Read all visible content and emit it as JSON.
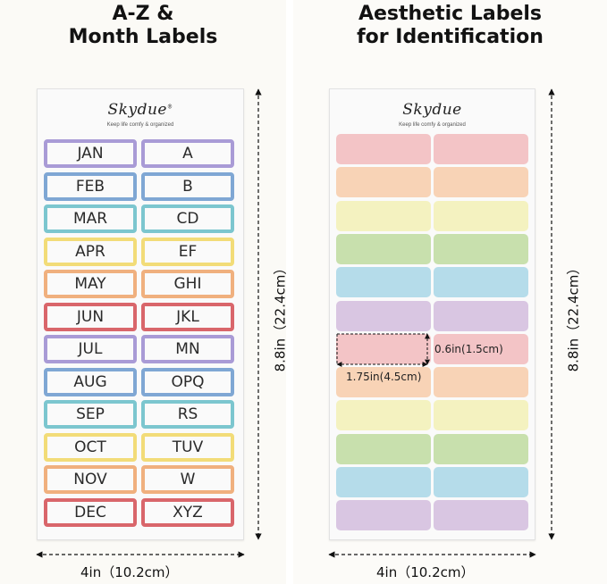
{
  "left_panel": {
    "title_line1": "A-Z &",
    "title_line2": "Month Labels",
    "brand": "Skydue",
    "brand_mark": "®",
    "tagline": "Keep life comfy & organized",
    "rows": [
      {
        "month": "JAN",
        "letters": "A",
        "color": "#a99bd6"
      },
      {
        "month": "FEB",
        "letters": "B",
        "color": "#7fa7d4"
      },
      {
        "month": "MAR",
        "letters": "CD",
        "color": "#7cc6cf"
      },
      {
        "month": "APR",
        "letters": "EF",
        "color": "#f2dc78"
      },
      {
        "month": "MAY",
        "letters": "GHI",
        "color": "#f0b07e"
      },
      {
        "month": "JUN",
        "letters": "JKL",
        "color": "#d9666b"
      },
      {
        "month": "JUL",
        "letters": "MN",
        "color": "#a99bd6"
      },
      {
        "month": "AUG",
        "letters": "OPQ",
        "color": "#7fa7d4"
      },
      {
        "month": "SEP",
        "letters": "RS",
        "color": "#7cc6cf"
      },
      {
        "month": "OCT",
        "letters": "TUV",
        "color": "#f2dc78"
      },
      {
        "month": "NOV",
        "letters": "W",
        "color": "#f0b07e"
      },
      {
        "month": "DEC",
        "letters": "XYZ",
        "color": "#d9666b"
      }
    ],
    "width_label": "4in（10.2cm）",
    "height_label": "8.8in（22.4cm）"
  },
  "right_panel": {
    "title_line1": "Aesthetic Labels",
    "title_line2": "for Identification",
    "brand": "Skydue",
    "tagline": "Keep life comfy & organized",
    "row_colors": [
      "#f3c4c6",
      "#f8d3b6",
      "#f4f2c0",
      "#c8e0ad",
      "#b5dcea",
      "#d9c6e2",
      "#f3c4c6",
      "#f8d3b6",
      "#f4f2c0",
      "#c8e0ad",
      "#b5dcea",
      "#d9c6e2"
    ],
    "label_height": "0.6in(1.5cm)",
    "label_width": "1.75in(4.5cm)",
    "width_label": "4in（10.2cm）",
    "height_label": "8.8in（22.4cm）"
  }
}
